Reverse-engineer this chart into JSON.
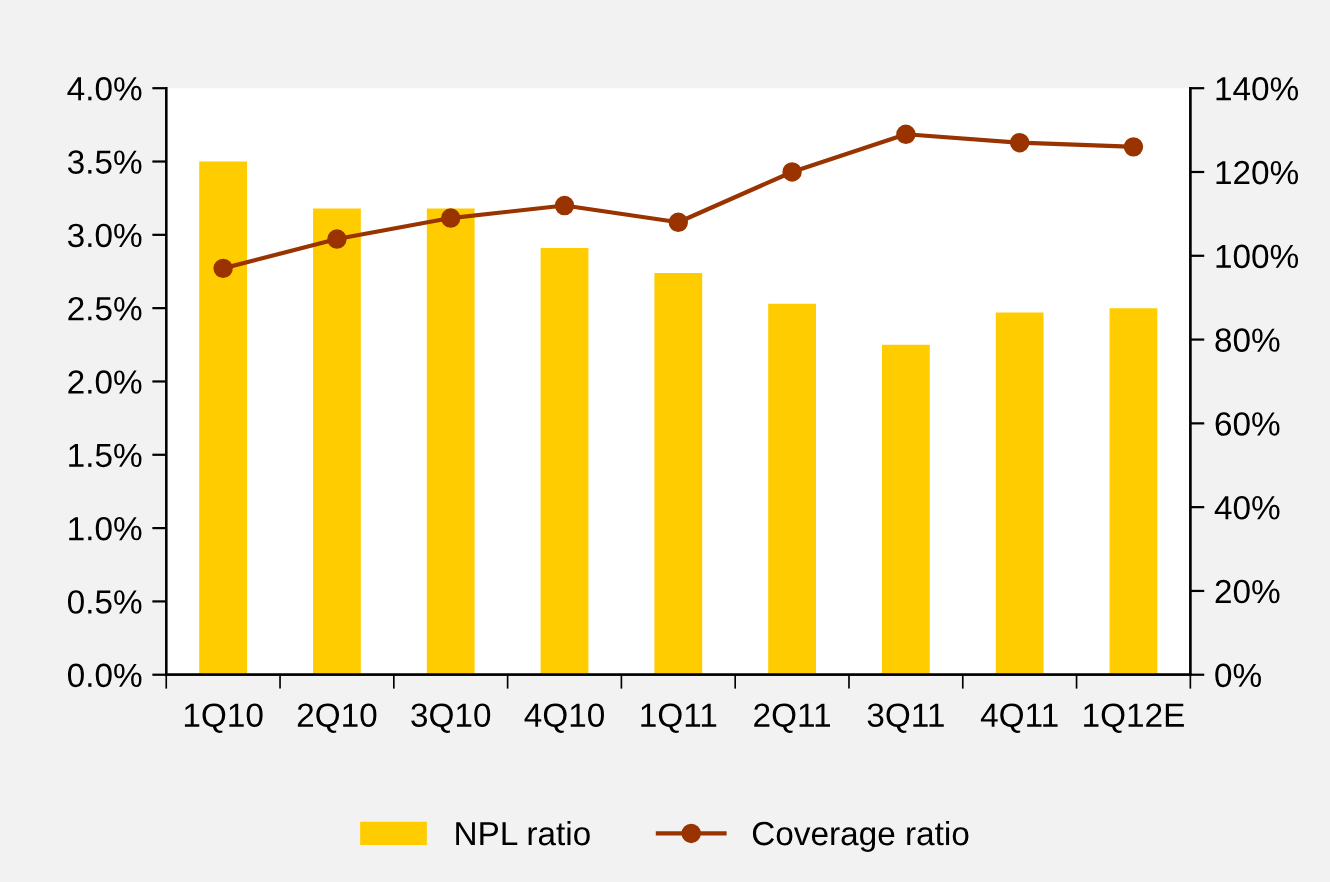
{
  "chart_data": {
    "type": "bar",
    "categories": [
      "1Q10",
      "2Q10",
      "3Q10",
      "4Q10",
      "1Q11",
      "2Q11",
      "3Q11",
      "4Q11",
      "1Q12E"
    ],
    "series": [
      {
        "name": "NPL ratio",
        "color": "#ffcc00",
        "values": [
          3.5,
          3.18,
          3.18,
          2.91,
          2.74,
          2.53,
          2.25,
          2.47,
          2.5
        ]
      },
      {
        "name": "Coverage ratio",
        "type": "line",
        "axis": "y2",
        "color": "#993300",
        "marker": "circle",
        "values": [
          97,
          104,
          109,
          112,
          108,
          120,
          129,
          127,
          126
        ]
      }
    ],
    "ylim": [
      0,
      4
    ],
    "yticks": [
      {
        "value": 0,
        "label": "0.0%"
      },
      {
        "value": 0.5,
        "label": "0.5%"
      },
      {
        "value": 1,
        "label": "1.0%"
      },
      {
        "value": 1.5,
        "label": "1.5%"
      },
      {
        "value": 2,
        "label": "2.0%"
      },
      {
        "value": 2.5,
        "label": "2.5%"
      },
      {
        "value": 3,
        "label": "3.0%"
      },
      {
        "value": 3.5,
        "label": "3.5%"
      },
      {
        "value": 4,
        "label": "4.0%"
      }
    ],
    "y2lim": [
      0,
      140
    ],
    "y2ticks": [
      {
        "value": 0,
        "label": "0%"
      },
      {
        "value": 20,
        "label": "20%"
      },
      {
        "value": 40,
        "label": "40%"
      },
      {
        "value": 60,
        "label": "60%"
      },
      {
        "value": 80,
        "label": "80%"
      },
      {
        "value": 100,
        "label": "100%"
      },
      {
        "value": 120,
        "label": "120%"
      },
      {
        "value": 140,
        "label": "140%"
      }
    ],
    "legend": "bottom",
    "grid": false
  }
}
